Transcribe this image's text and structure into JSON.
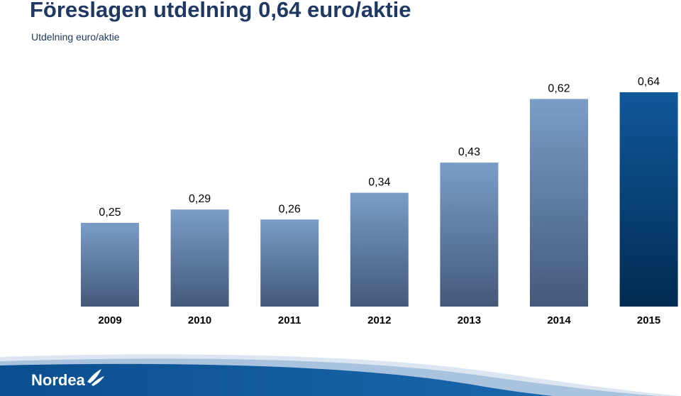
{
  "header": {
    "title": "Föreslagen utdelning 0,64 euro/aktie",
    "subtitle": "Utdelning euro/aktie"
  },
  "chart_data": {
    "type": "bar",
    "title": "Föreslagen utdelning 0,64 euro/aktie",
    "subtitle": "Utdelning euro/aktie",
    "categories": [
      "2009",
      "2010",
      "2011",
      "2012",
      "2013",
      "2014",
      "2015"
    ],
    "values": [
      0.25,
      0.29,
      0.26,
      0.34,
      0.43,
      0.62,
      0.64
    ],
    "value_labels": [
      "0,25",
      "0,29",
      "0,26",
      "0,34",
      "0,43",
      "0,62",
      "0,64"
    ],
    "highlighted_category": "2015",
    "ylim": [
      0,
      0.64
    ],
    "grid": false,
    "legend": "none",
    "colors": {
      "bar_top": "#7a9dc8",
      "bar_bottom": "#44597a",
      "highlight_top": "#10589a",
      "highlight_bottom": "#002b52",
      "label_text": "#000000",
      "title_text": "#1f3864"
    }
  },
  "footer": {
    "logo_text": "Nordea",
    "logo_icon": "nordea-sail-icon",
    "band_color": "#0a4f8f"
  }
}
